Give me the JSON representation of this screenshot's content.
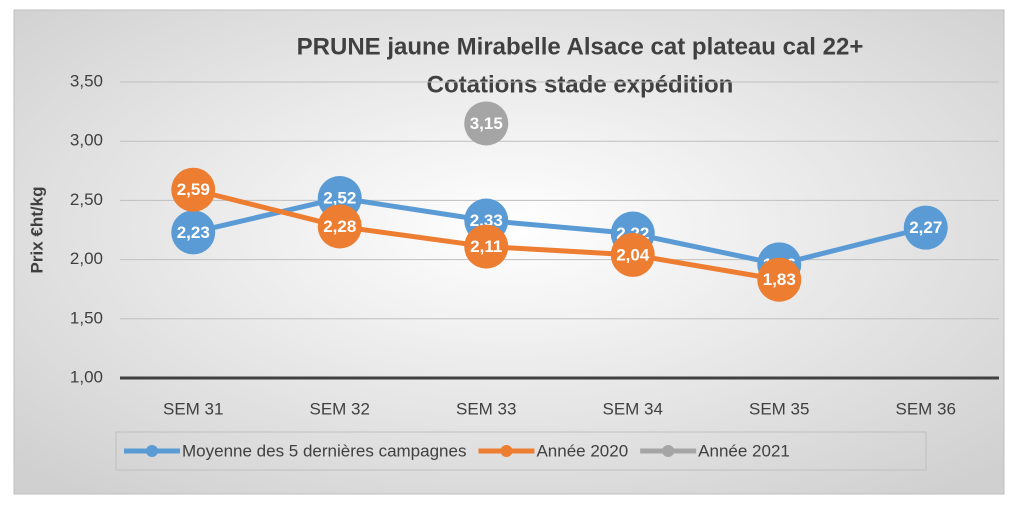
{
  "chart_data": {
    "type": "line",
    "title": "PRUNE jaune Mirabelle Alsace cat plateau cal 22+",
    "subtitle": "Cotations stade expédition",
    "y_label": "Prix €ht/kg",
    "categories": [
      "SEM 31",
      "SEM 32",
      "SEM 33",
      "SEM 34",
      "SEM 35",
      "SEM 36"
    ],
    "series": [
      {
        "name": "Moyenne des 5 dernières campagnes",
        "color": "#5b9bd5",
        "values": [
          2.23,
          2.52,
          2.33,
          2.22,
          1.96,
          2.27
        ],
        "value_labels": [
          "2,23",
          "2,52",
          "2,33",
          "2,22",
          "1,96",
          "2,27"
        ]
      },
      {
        "name": "Année 2020",
        "color": "#ed7d31",
        "values": [
          2.59,
          2.28,
          2.11,
          2.04,
          1.83,
          null
        ],
        "value_labels": [
          "2,59",
          "2,28",
          "2,11",
          "2,04",
          "1,83",
          null
        ]
      },
      {
        "name": "Année 2021",
        "color": "#a5a5a5",
        "values": [
          null,
          null,
          3.15,
          null,
          null,
          null
        ],
        "value_labels": [
          null,
          null,
          "3,15",
          null,
          null,
          null
        ]
      }
    ],
    "ylim": [
      1,
      3.5
    ],
    "yticks": [
      {
        "value": 1,
        "label": "1,00"
      },
      {
        "value": 1.5,
        "label": "1,50"
      },
      {
        "value": 2,
        "label": "2,00"
      },
      {
        "value": 2.5,
        "label": "2,50"
      },
      {
        "value": 3,
        "label": "3,00"
      },
      {
        "value": 3.5,
        "label": "3,50"
      }
    ],
    "grid": true,
    "legend": "bottom"
  }
}
